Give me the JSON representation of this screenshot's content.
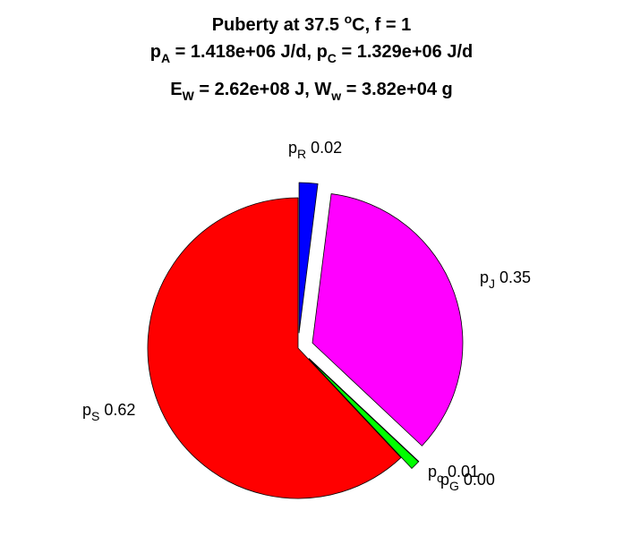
{
  "chart_data": {
    "type": "pie",
    "title": {
      "line1": {
        "text": "Puberty at 37.5 ",
        "superscript": "o",
        "after": "C, f = 1"
      },
      "line2": {
        "a_symbol": "p",
        "a_subscript": "A",
        "a_value": " = 1.418e+06 J/d,  ",
        "c_symbol": "p",
        "c_subscript": "C",
        "c_value": " = 1.329e+06 J/d"
      },
      "line3": {
        "e_symbol": "E",
        "e_subscript": "W",
        "e_value": " = 2.62e+08 J, ",
        "w_symbol": "W",
        "w_subscript": "w",
        "w_value": " = 3.82e+04 g"
      }
    },
    "slices": [
      {
        "symbol": "p",
        "subscript": "R",
        "value": 0.02,
        "label_value": "0.02",
        "color": "#0000ff",
        "exploded": true
      },
      {
        "symbol": "p",
        "subscript": "J",
        "value": 0.35,
        "label_value": "0.35",
        "color": "#ff00ff",
        "exploded": true
      },
      {
        "symbol": "p",
        "subscript": "G",
        "value": 0.0,
        "label_value": "0.00",
        "color": "#00ffff",
        "exploded": true
      },
      {
        "symbol": "p",
        "subscript": "c",
        "value": 0.01,
        "label_value": "0.01",
        "color": "#00ff00",
        "exploded": true
      },
      {
        "symbol": "p",
        "subscript": "S",
        "value": 0.62,
        "label_value": "0.62",
        "color": "#ff0000",
        "exploded": false
      }
    ],
    "start": "top",
    "direction": "clockwise",
    "legend": "none",
    "grid": false
  }
}
